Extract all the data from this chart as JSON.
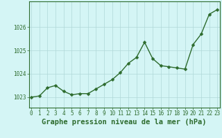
{
  "hours": [
    0,
    1,
    2,
    3,
    4,
    5,
    6,
    7,
    8,
    9,
    10,
    11,
    12,
    13,
    14,
    15,
    16,
    17,
    18,
    19,
    20,
    21,
    22,
    23
  ],
  "pressure": [
    1023.0,
    1023.05,
    1023.4,
    1023.5,
    1023.25,
    1023.1,
    1023.15,
    1023.15,
    1023.35,
    1023.55,
    1023.75,
    1024.05,
    1024.45,
    1024.7,
    1025.35,
    1024.65,
    1024.35,
    1024.3,
    1024.25,
    1024.2,
    1025.25,
    1025.7,
    1026.55,
    1026.75
  ],
  "line_color": "#2d6b2d",
  "marker": "D",
  "marker_size": 2.5,
  "bg_color": "#d4f5f5",
  "grid_color": "#b0d8d8",
  "ylabel_ticks": [
    1023,
    1024,
    1025,
    1026
  ],
  "ylim": [
    1022.55,
    1027.1
  ],
  "xlim": [
    -0.3,
    23.3
  ],
  "xlabel": "Graphe pression niveau de la mer (hPa)",
  "tick_fontsize": 5.5,
  "xlabel_fontsize": 7.5,
  "line_width": 1.0,
  "spine_color": "#2d6b2d"
}
